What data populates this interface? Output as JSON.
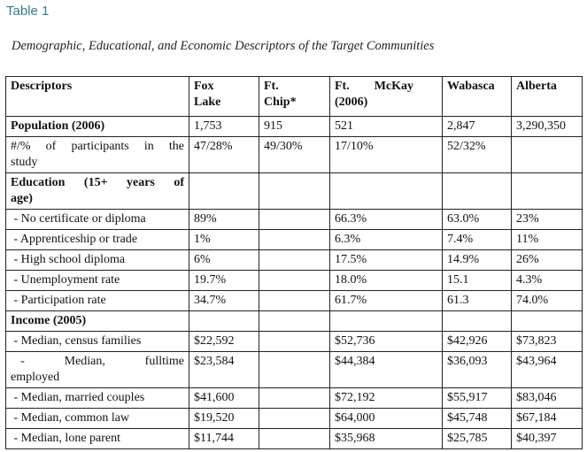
{
  "table_label": "Table 1",
  "caption": "Demographic, Educational, and Economic Descriptors of the Target Communities",
  "columns": [
    {
      "line1": "Descriptors",
      "line2": ""
    },
    {
      "line1": "Fox",
      "line2": "Lake"
    },
    {
      "line1": "Ft.",
      "line2": "Chip*"
    },
    {
      "line1": "Ft.        McKay",
      "line2": "(2006)"
    },
    {
      "line1": "Wabasca",
      "line2": ""
    },
    {
      "line1": "Alberta",
      "line2": ""
    }
  ],
  "rows": [
    {
      "label": "Population (2006)",
      "style": "bold",
      "values": [
        "1,753",
        "915",
        "521",
        "2,847",
        "3,290,350"
      ]
    },
    {
      "label_line1": "#/% of participants in the",
      "label_line2": "study",
      "style": "wrap",
      "values": [
        "47/28%",
        "49/30%",
        "17/10%",
        "52/32%",
        ""
      ]
    },
    {
      "label_line1": "Education (15+ years of",
      "label_line2": "age)",
      "style": "bold-wrap",
      "values": [
        "",
        "",
        "",
        "",
        ""
      ]
    },
    {
      "label": " - No certificate or diploma",
      "style": "sub",
      "values": [
        "89%",
        "",
        "66.3%",
        "63.0%",
        "23%"
      ]
    },
    {
      "label": " - Apprenticeship or trade",
      "style": "sub",
      "values": [
        "1%",
        "",
        "6.3%",
        "7.4%",
        "11%"
      ]
    },
    {
      "label": " - High school diploma",
      "style": "sub",
      "values": [
        "6%",
        "",
        "17.5%",
        "14.9%",
        "26%"
      ]
    },
    {
      "label": " - Unemployment rate",
      "style": "sub",
      "values": [
        "19.7%",
        "",
        "18.0%",
        "15.1",
        "4.3%"
      ]
    },
    {
      "label": " - Participation rate",
      "style": "sub",
      "values": [
        "34.7%",
        "",
        "61.7%",
        "61.3",
        "74.0%"
      ]
    },
    {
      "label": "Income (2005)",
      "style": "bold",
      "values": [
        "",
        "",
        "",
        "",
        ""
      ]
    },
    {
      "label": " - Median, census families",
      "style": "sub",
      "values": [
        "$22,592",
        "",
        "$52,736",
        "$42,926",
        "$73,823"
      ]
    },
    {
      "label_line1": " -    Median,    fulltime",
      "label_line2": "employed",
      "style": "wrap",
      "values": [
        "$23,584",
        "",
        "$44,384",
        "$36,093",
        "$43,964"
      ]
    },
    {
      "label": " - Median, married couples",
      "style": "sub",
      "values": [
        "$41,600",
        "",
        "$72,192",
        "$55,917",
        "$83,046"
      ]
    },
    {
      "label": " - Median, common law",
      "style": "sub",
      "values": [
        "$19,520",
        "",
        "$64,000",
        "$45,748",
        "$67,184"
      ]
    },
    {
      "label": " - Median, lone parent",
      "style": "sub",
      "values": [
        "$11,744",
        "",
        "$35,968",
        "$25,785",
        "$40,397"
      ]
    }
  ]
}
